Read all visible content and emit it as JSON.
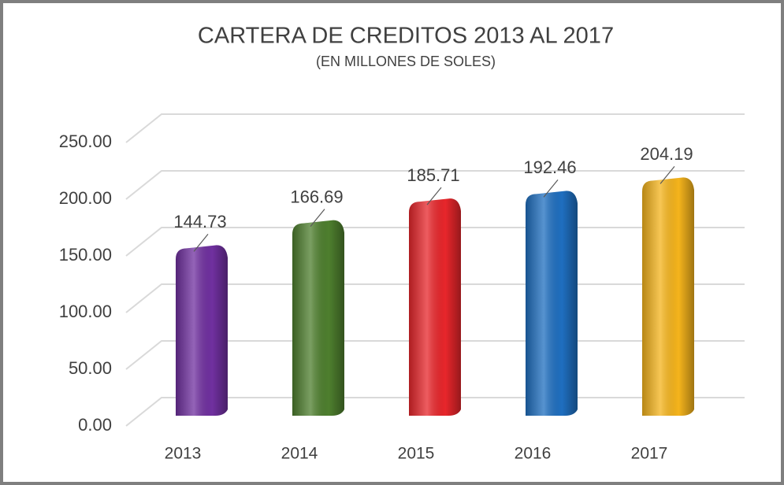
{
  "chart_data": {
    "type": "bar",
    "title": "CARTERA DE CREDITOS 2013 AL 2017",
    "subtitle": "(EN MILLONES DE SOLES)",
    "categories": [
      "2013",
      "2014",
      "2015",
      "2016",
      "2017"
    ],
    "values": [
      144.73,
      166.69,
      185.71,
      192.46,
      204.19
    ],
    "colors": [
      "#7030a0",
      "#4e7f2e",
      "#e8262b",
      "#1f6fc0",
      "#f5b41c"
    ],
    "ylim": [
      0,
      250
    ],
    "yticks": [
      {
        "value": 0,
        "label": "0.00"
      },
      {
        "value": 50,
        "label": "50.00"
      },
      {
        "value": 100,
        "label": "100.00"
      },
      {
        "value": 150,
        "label": "150.00"
      },
      {
        "value": 200,
        "label": "200.00"
      },
      {
        "value": 250,
        "label": "250.00"
      }
    ],
    "grid": true
  }
}
